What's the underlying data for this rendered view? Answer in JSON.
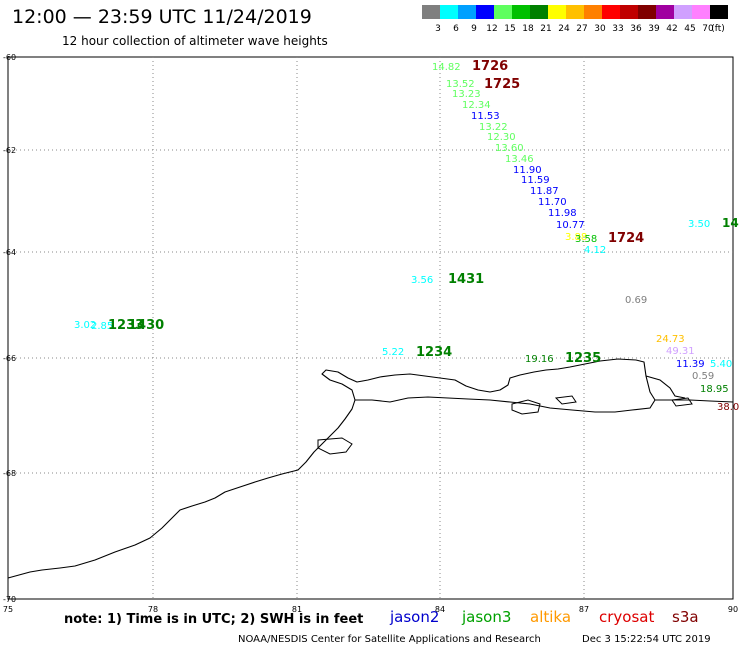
{
  "header": {
    "title": "12:00 — 23:59 UTC 11/24/2019",
    "subtitle": "12 hour collection of altimeter wave heights"
  },
  "color_scale": {
    "unit": "(ft)",
    "items": [
      {
        "label": "3",
        "color": "#7f7f7f"
      },
      {
        "label": "6",
        "color": "#00ffff"
      },
      {
        "label": "9",
        "color": "#00a0ff"
      },
      {
        "label": "12",
        "color": "#0000ff"
      },
      {
        "label": "15",
        "color": "#5fff5f"
      },
      {
        "label": "18",
        "color": "#00c000"
      },
      {
        "label": "21",
        "color": "#008000"
      },
      {
        "label": "24",
        "color": "#ffff00"
      },
      {
        "label": "27",
        "color": "#ffc000"
      },
      {
        "label": "30",
        "color": "#ff8000"
      },
      {
        "label": "33",
        "color": "#ff0000"
      },
      {
        "label": "36",
        "color": "#c00000"
      },
      {
        "label": "39",
        "color": "#800000"
      },
      {
        "label": "42",
        "color": "#a000a0"
      },
      {
        "label": "45",
        "color": "#d0a0ff"
      },
      {
        "label": "70",
        "color": "#ff80ff"
      },
      {
        "label": "",
        "color": "#000000"
      }
    ]
  },
  "map": {
    "lon_range": [
      75,
      90
    ],
    "lat_range": [
      -60,
      -70
    ],
    "lon_ticks": [
      "75",
      "78",
      "81",
      "84",
      "87",
      "90"
    ],
    "lat_ticks": [
      "-60",
      "-62",
      "-64",
      "-66",
      "-68",
      "-70"
    ]
  },
  "observations": [
    {
      "text": "14.82",
      "color": "#5fff5f"
    },
    {
      "text": "1726",
      "color": "#800000"
    },
    {
      "text": "13.52",
      "color": "#5fff5f"
    },
    {
      "text": "1725",
      "color": "#800000"
    },
    {
      "text": "13.23",
      "color": "#5fff5f"
    },
    {
      "text": "12.34",
      "color": "#5fff5f"
    },
    {
      "text": "11.53",
      "color": "#0000ff"
    },
    {
      "text": "13.22",
      "color": "#5fff5f"
    },
    {
      "text": "12.30",
      "color": "#5fff5f"
    },
    {
      "text": "13.60",
      "color": "#5fff5f"
    },
    {
      "text": "13.46",
      "color": "#5fff5f"
    },
    {
      "text": "11.90",
      "color": "#0000ff"
    },
    {
      "text": "11.59",
      "color": "#0000ff"
    },
    {
      "text": "11.87",
      "color": "#0000ff"
    },
    {
      "text": "11.70",
      "color": "#0000ff"
    },
    {
      "text": "11.98",
      "color": "#0000ff"
    },
    {
      "text": "10.77",
      "color": "#0000ff"
    },
    {
      "text": "3.88",
      "color": "#ffff00"
    },
    {
      "text": "3.58",
      "color": "#00c000"
    },
    {
      "text": "1724",
      "color": "#800000"
    },
    {
      "text": "4.12",
      "color": "#00ffff"
    },
    {
      "text": "3.50",
      "color": "#00ffff"
    },
    {
      "text": "14",
      "color": "#008000"
    },
    {
      "text": "3.56",
      "color": "#00ffff"
    },
    {
      "text": "1431",
      "color": "#008000"
    },
    {
      "text": "0.69",
      "color": "#7f7f7f"
    },
    {
      "text": "3.02",
      "color": "#00ffff"
    },
    {
      "text": "2.85",
      "color": "#00ffff"
    },
    {
      "text": "1233",
      "color": "#008000"
    },
    {
      "text": "1430",
      "color": "#008000"
    },
    {
      "text": "24.73",
      "color": "#ffc000"
    },
    {
      "text": "5.22",
      "color": "#00ffff"
    },
    {
      "text": "1234",
      "color": "#008000"
    },
    {
      "text": "49.31",
      "color": "#d0a0ff"
    },
    {
      "text": "19.16",
      "color": "#008000"
    },
    {
      "text": "1235",
      "color": "#008000"
    },
    {
      "text": "11.39",
      "color": "#0000ff"
    },
    {
      "text": "5.40",
      "color": "#00ffff"
    },
    {
      "text": "0.59",
      "color": "#7f7f7f"
    },
    {
      "text": "18.95",
      "color": "#008000"
    },
    {
      "text": "38.0",
      "color": "#800000"
    }
  ],
  "footer": {
    "note": "note:  1) Time is in UTC;  2) SWH is in feet",
    "satellites": [
      {
        "name": "jason2",
        "color": "#0000cc"
      },
      {
        "name": "jason3",
        "color": "#00a000"
      },
      {
        "name": "altika",
        "color": "#ff9900"
      },
      {
        "name": "cryosat",
        "color": "#dd0000"
      },
      {
        "name": "s3a",
        "color": "#800000"
      }
    ],
    "credit": "NOAA/NESDIS Center for Satellite Applications and Research",
    "timestamp": "Dec  3 15:22:54 UTC 2019"
  }
}
